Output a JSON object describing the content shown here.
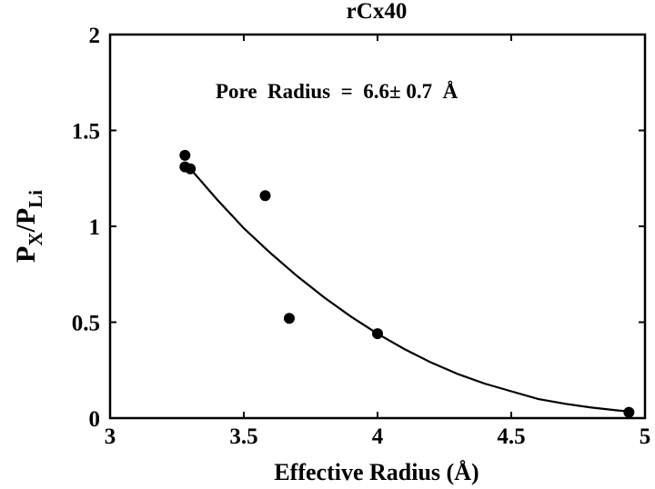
{
  "chart_data": {
    "type": "scatter",
    "title": "rCx40",
    "xlabel": "Effective Radius (Å)",
    "ylabel": {
      "p1": "P",
      "s1": "X",
      "slash": "/P",
      "s2": "Li"
    },
    "annotation": "Pore  Radius  =  6.6± 0.7  Å",
    "xlim": [
      3,
      5
    ],
    "ylim": [
      0,
      2
    ],
    "x_ticks": [
      {
        "value": 3,
        "label": "3"
      },
      {
        "value": 3.5,
        "label": "3.5"
      },
      {
        "value": 4,
        "label": "4"
      },
      {
        "value": 4.5,
        "label": "4.5"
      },
      {
        "value": 5,
        "label": "5"
      }
    ],
    "y_ticks": [
      {
        "value": 0,
        "label": "0"
      },
      {
        "value": 0.5,
        "label": "0.5"
      },
      {
        "value": 1,
        "label": "1"
      },
      {
        "value": 1.5,
        "label": "1.5"
      },
      {
        "value": 2,
        "label": "2"
      }
    ],
    "grid": false,
    "series": [
      {
        "points": [
          {
            "x": 3.28,
            "y": 1.37
          },
          {
            "x": 3.28,
            "y": 1.31
          },
          {
            "x": 3.3,
            "y": 1.3
          },
          {
            "x": 3.58,
            "y": 1.16
          },
          {
            "x": 3.67,
            "y": 0.52
          },
          {
            "x": 4.0,
            "y": 0.44
          },
          {
            "x": 4.94,
            "y": 0.03
          }
        ],
        "fit_curve": [
          {
            "x": 3.3,
            "y": 1.3
          },
          {
            "x": 3.4,
            "y": 1.14
          },
          {
            "x": 3.5,
            "y": 0.99
          },
          {
            "x": 3.6,
            "y": 0.86
          },
          {
            "x": 3.7,
            "y": 0.74
          },
          {
            "x": 3.8,
            "y": 0.63
          },
          {
            "x": 3.9,
            "y": 0.53
          },
          {
            "x": 4.0,
            "y": 0.44
          },
          {
            "x": 4.1,
            "y": 0.36
          },
          {
            "x": 4.2,
            "y": 0.29
          },
          {
            "x": 4.3,
            "y": 0.23
          },
          {
            "x": 4.4,
            "y": 0.18
          },
          {
            "x": 4.5,
            "y": 0.14
          },
          {
            "x": 4.6,
            "y": 0.1
          },
          {
            "x": 4.7,
            "y": 0.075
          },
          {
            "x": 4.8,
            "y": 0.055
          },
          {
            "x": 4.9,
            "y": 0.04
          },
          {
            "x": 4.94,
            "y": 0.035
          }
        ]
      }
    ]
  }
}
